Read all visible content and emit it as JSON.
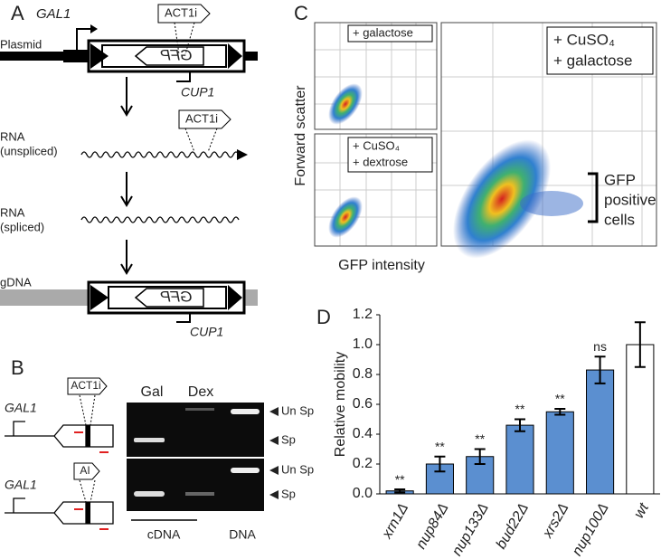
{
  "panel_a": {
    "label": "A",
    "gal1": "GAL1",
    "insert": "ACT1i",
    "plasmid": "Plasmid",
    "gfp": "GFP",
    "cup1": "CUP1",
    "rna_unspliced": [
      "RNA",
      "(unspliced)"
    ],
    "insert_2": "ACT1i",
    "rna_spliced": [
      "RNA",
      "(spliced)"
    ],
    "gdna": "gDNA",
    "gfp_2": "GFP",
    "cup1_2": "CUP1"
  },
  "panel_b": {
    "label": "B",
    "gal1_top": "GAL1",
    "insert_top": "ACT1i",
    "gal1_bottom": "GAL1",
    "insert_bottom": "AI",
    "lanes": [
      "Gal",
      "Dex"
    ],
    "bands_top": [
      "Un Sp",
      "Sp"
    ],
    "bands_bottom": [
      "Un Sp",
      "Sp"
    ],
    "groups": [
      "cDNA",
      "DNA"
    ]
  },
  "panel_c": {
    "label": "C",
    "top_small": "+ galactose",
    "bottom_small": [
      "+ CuSO₄",
      "+ dextrose"
    ],
    "large": [
      "+ CuSO₄",
      "+ galactose"
    ],
    "gate": [
      "GFP",
      "positive",
      "cells"
    ],
    "y_label": "Forward scatter",
    "x_label": "GFP intensity"
  },
  "chart_data": {
    "type": "bar",
    "panel_label": "D",
    "y_label": "Relative mobility",
    "categories": [
      "xrn1Δ",
      "nup84Δ",
      "nup133Δ",
      "bud22Δ",
      "xrs2Δ",
      "nup100Δ",
      "wt"
    ],
    "values": [
      0.02,
      0.2,
      0.25,
      0.46,
      0.55,
      0.83,
      1.0
    ],
    "errors": [
      0.01,
      0.05,
      0.05,
      0.04,
      0.02,
      0.09,
      0.15
    ],
    "annotations": [
      "**",
      "**",
      "**",
      "**",
      "**",
      "ns",
      null
    ],
    "colors": [
      "#5b8fd0",
      "#5b8fd0",
      "#5b8fd0",
      "#5b8fd0",
      "#5b8fd0",
      "#5b8fd0",
      "#ffffff"
    ],
    "ylim": [
      0,
      1.2
    ],
    "yticks": [
      {
        "value": 0,
        "label": "0.0"
      },
      0.2,
      0.4,
      0.6,
      0.8,
      {
        "value": 1,
        "label": "1.0"
      },
      1.2
    ]
  }
}
